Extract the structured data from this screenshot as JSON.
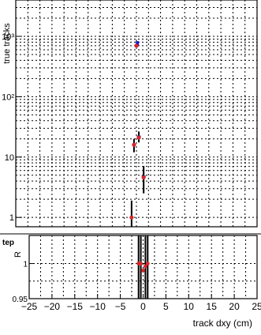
{
  "chart_data": [
    {
      "type": "scatter",
      "panel": "main",
      "ylabel": "true tracks",
      "yscale": "log",
      "xlim": [
        -25,
        25
      ],
      "ylim": [
        0.7,
        4000
      ],
      "y_ticks": [
        {
          "value": 1,
          "label": "1"
        },
        {
          "value": 10,
          "label": "10"
        },
        {
          "value": 100,
          "label": "10²"
        },
        {
          "value": 1000,
          "label": "10³"
        }
      ],
      "grid": true,
      "series": [
        {
          "color": "#1a1acc",
          "style": "step-with-errors",
          "x": [
            -0.5,
            0.5,
            1.5
          ],
          "y": [
            16,
            22,
            4.8
          ],
          "y_err_low": [
            4,
            4.5,
            2.3
          ],
          "y_err_high": [
            4,
            4.5,
            2.3
          ],
          "extra_points": [
            {
              "x": 0.2,
              "y": 760
            }
          ]
        },
        {
          "color": "#d62728",
          "style": "points",
          "x": [
            -1.0,
            -0.5,
            0.0,
            0.5,
            1.5
          ],
          "y": [
            1,
            16,
            700,
            21,
            4.6
          ]
        }
      ]
    },
    {
      "type": "scatter",
      "panel": "ratio",
      "ylabel": "R",
      "header_label": "tep",
      "xlabel": "track dxy (cm)",
      "xlim": [
        -25,
        25
      ],
      "ylim": [
        0.95,
        1.04
      ],
      "x_ticks": [
        -25,
        -20,
        -15,
        -10,
        -5,
        0,
        5,
        10,
        15,
        20,
        25
      ],
      "y_ticks": [
        {
          "value": 0.95,
          "label": "0.95"
        },
        {
          "value": 1,
          "label": "1"
        }
      ],
      "grid": true,
      "points": [
        {
          "x": -1.0,
          "y": 1.0
        },
        {
          "x": -0.5,
          "y": 1.0
        },
        {
          "x": 0.0,
          "y": 0.99
        },
        {
          "x": 0.5,
          "y": 0.996
        },
        {
          "x": 1.0,
          "y": 1.0
        }
      ],
      "ratio_color": "#d62728"
    }
  ]
}
